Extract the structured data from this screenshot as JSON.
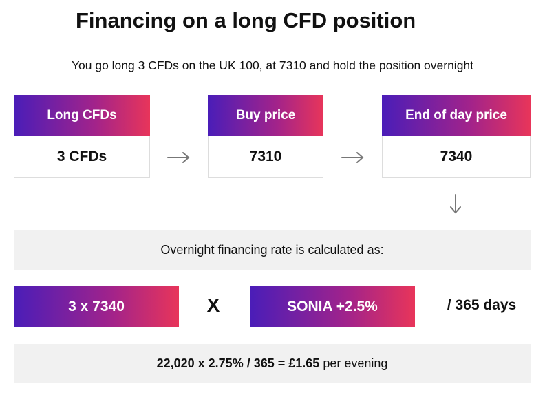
{
  "title": "Financing on a long CFD position",
  "subtitle": "You go long 3 CFDs on the UK 100, at 7310 and hold the position overnight",
  "boxes": [
    {
      "header": "Long CFDs",
      "value": "3 CFDs"
    },
    {
      "header": "Buy price",
      "value": "7310"
    },
    {
      "header": "End of day price",
      "value": "7340"
    }
  ],
  "calc_label": "Overnight financing rate is calculated as:",
  "formula": {
    "left": "3 x 7340",
    "operator": "X",
    "right": "SONIA +2.5%",
    "suffix": "/ 365 days"
  },
  "result": {
    "bold": "22,020 x 2.75% / 365 = £1.65",
    "text": "per evening"
  }
}
